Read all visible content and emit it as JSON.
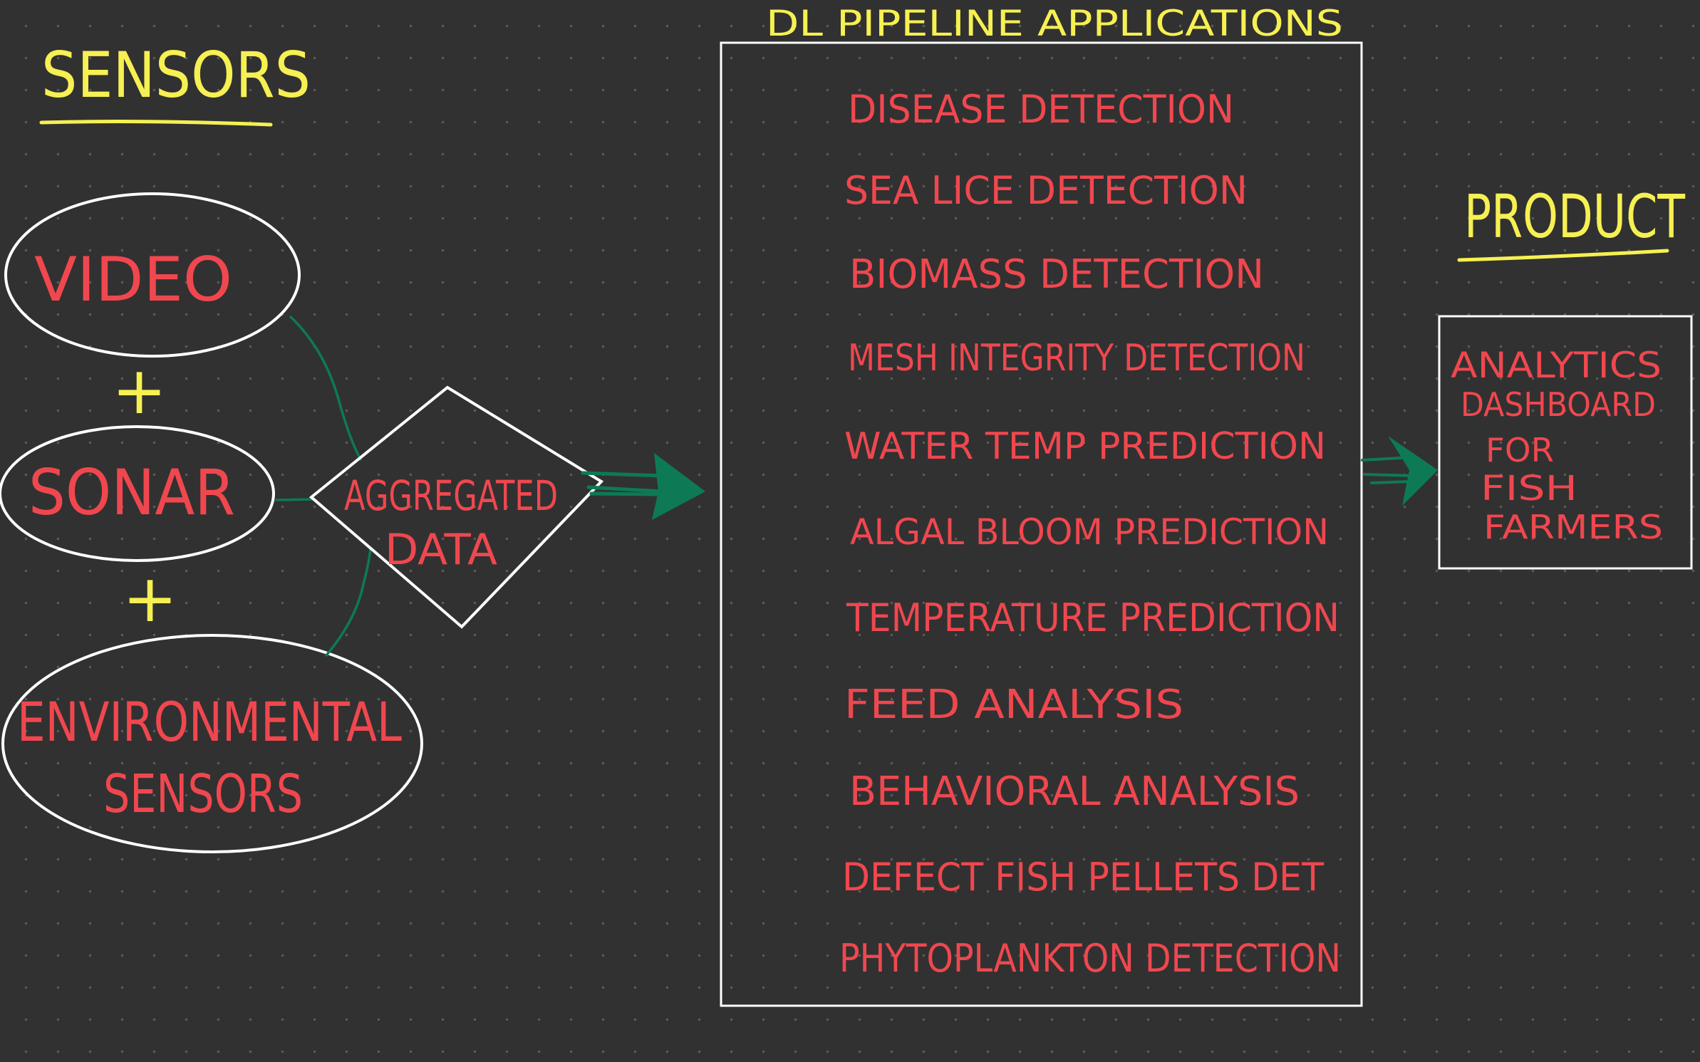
{
  "headings": {
    "sensors": "SENSORS",
    "pipeline": "DL PIPELINE APPLICATIONS",
    "product": "PRODUCT"
  },
  "sensors": {
    "video": "VIDEO",
    "plus_1": "+",
    "sonar": "SONAR",
    "plus_2": "+",
    "environmental_line1": "ENVIRONMENTAL",
    "environmental_line2": "SENSORS"
  },
  "aggregated": {
    "line1": "AGGREGATED",
    "line2": "DATA"
  },
  "applications": [
    "DISEASE DETECTION",
    "SEA LICE DETECTION",
    "BIOMASS DETECTION",
    "MESH INTEGRITY DETECTION",
    "WATER TEMP PREDICTION",
    "ALGAL BLOOM PREDICTION",
    "TEMPERATURE PREDICTION",
    "FEED ANALYSIS",
    "BEHAVIORAL ANALYSIS",
    "DEFECT FISH PELLETS DET",
    "PHYTOPLANKTON DETECTION"
  ],
  "product": {
    "lines": [
      "ANALYTICS",
      "DASHBOARD",
      "FOR",
      "FISH",
      "FARMERS"
    ]
  },
  "colors": {
    "background": "#313131",
    "heading": "#f6f052",
    "label": "#f0474f",
    "outline": "#ffffff",
    "connector": "#0d7a55"
  }
}
